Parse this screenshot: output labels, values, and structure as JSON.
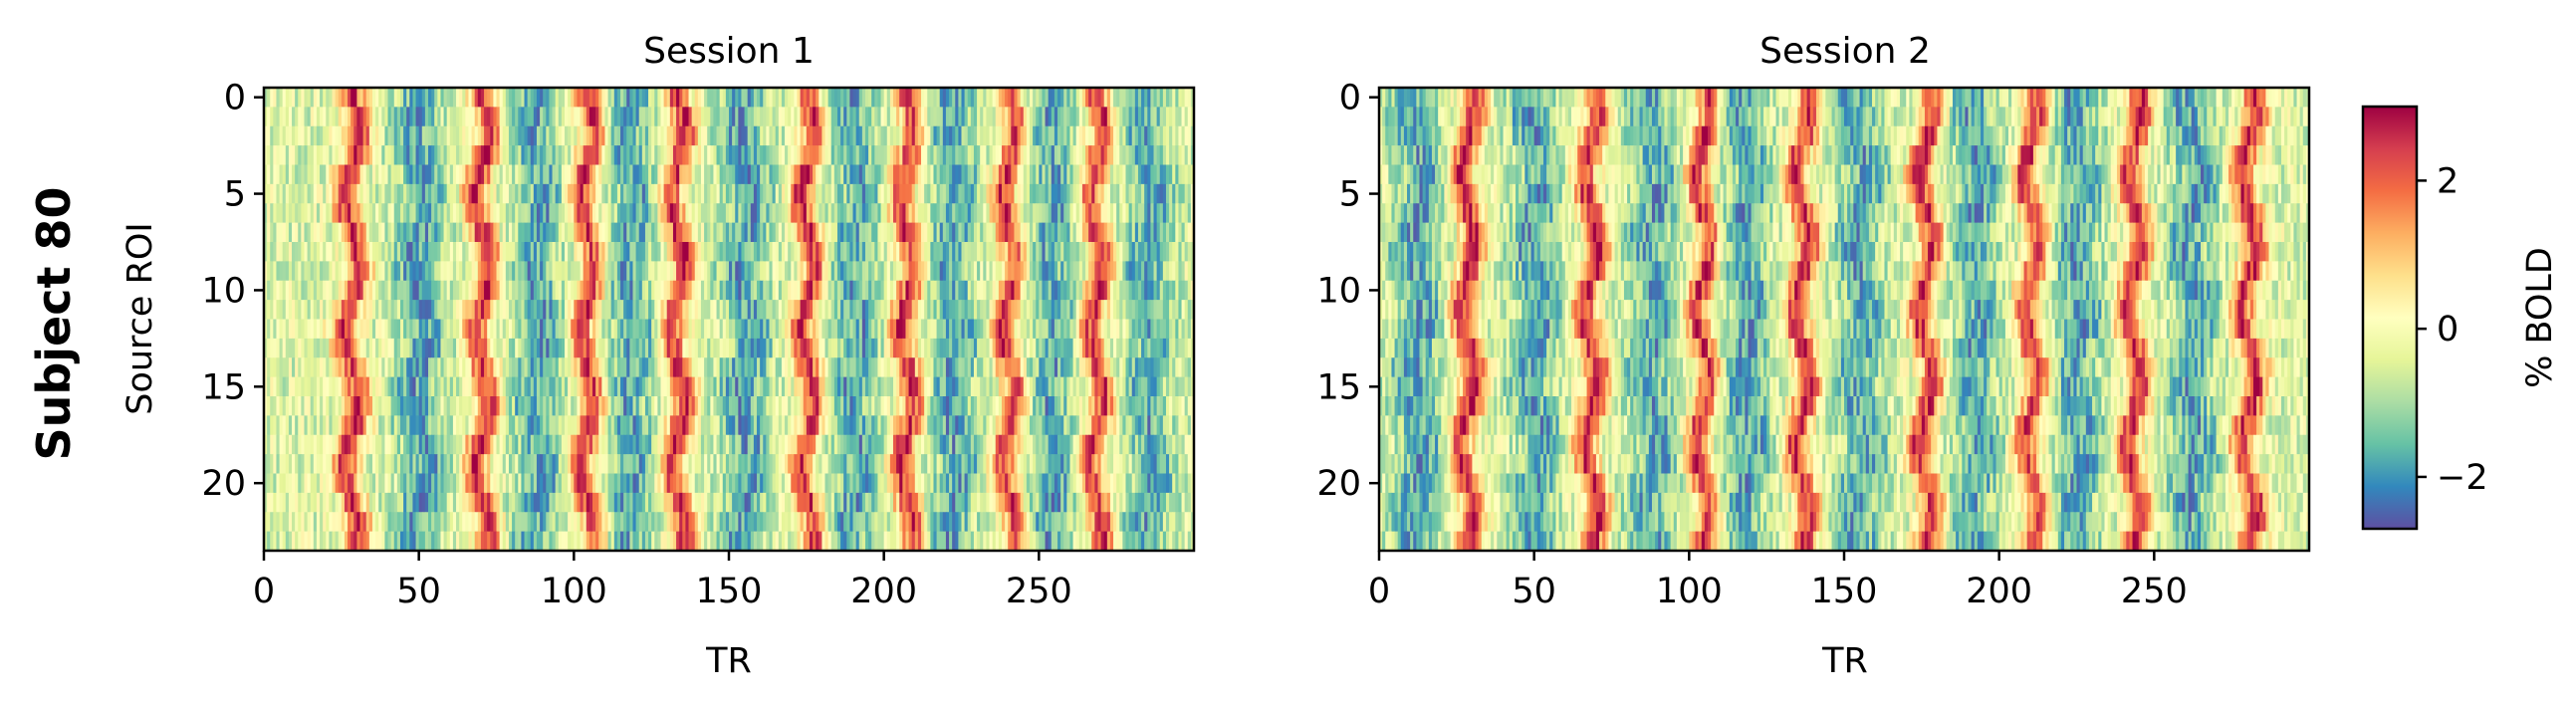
{
  "figure": {
    "row_label": "Subject 80"
  },
  "colorbar": {
    "label": "% BOLD",
    "vmin": -2.7,
    "vmax": 3.0,
    "ticks": [
      -2,
      0,
      2
    ],
    "tick_labels": [
      "−2",
      "0",
      "2"
    ],
    "colormap": "Spectral_r",
    "colors": [
      "#5e4fa2",
      "#3288bd",
      "#66c2a5",
      "#abdda4",
      "#e6f598",
      "#ffffbf",
      "#fee08b",
      "#fdae61",
      "#f46d43",
      "#d53e4f",
      "#9e0142"
    ]
  },
  "chart_data": [
    {
      "type": "heatmap",
      "title": "Session 1",
      "xlabel": "TR",
      "ylabel": "Source ROI",
      "n_rows": 24,
      "n_cols": 300,
      "x_ticks": [
        0,
        50,
        100,
        150,
        200,
        250
      ],
      "x_tick_labels": [
        "0",
        "50",
        "100",
        "150",
        "200",
        "250"
      ],
      "y_ticks": [
        0,
        5,
        10,
        15,
        20
      ],
      "y_tick_labels": [
        "0",
        "5",
        "10",
        "15",
        "20"
      ],
      "value_range": [
        -2.7,
        3.0
      ],
      "peak_TRs": [
        28,
        70,
        104,
        133,
        175,
        207,
        240,
        268
      ],
      "trough_TRs": [
        50,
        88,
        118,
        155,
        190,
        222,
        254,
        285
      ]
    },
    {
      "type": "heatmap",
      "title": "Session 2",
      "xlabel": "TR",
      "ylabel": "",
      "n_rows": 24,
      "n_cols": 300,
      "x_ticks": [
        0,
        50,
        100,
        150,
        200,
        250
      ],
      "x_tick_labels": [
        "0",
        "50",
        "100",
        "150",
        "200",
        "250"
      ],
      "y_ticks": [
        0,
        5,
        10,
        15,
        20
      ],
      "y_tick_labels": [
        "0",
        "5",
        "10",
        "15",
        "20"
      ],
      "value_range": [
        -2.7,
        3.0
      ],
      "peak_TRs": [
        28,
        68,
        104,
        136,
        176,
        210,
        243,
        280
      ],
      "trough_TRs": [
        12,
        50,
        88,
        118,
        155,
        192,
        225,
        262
      ]
    }
  ]
}
